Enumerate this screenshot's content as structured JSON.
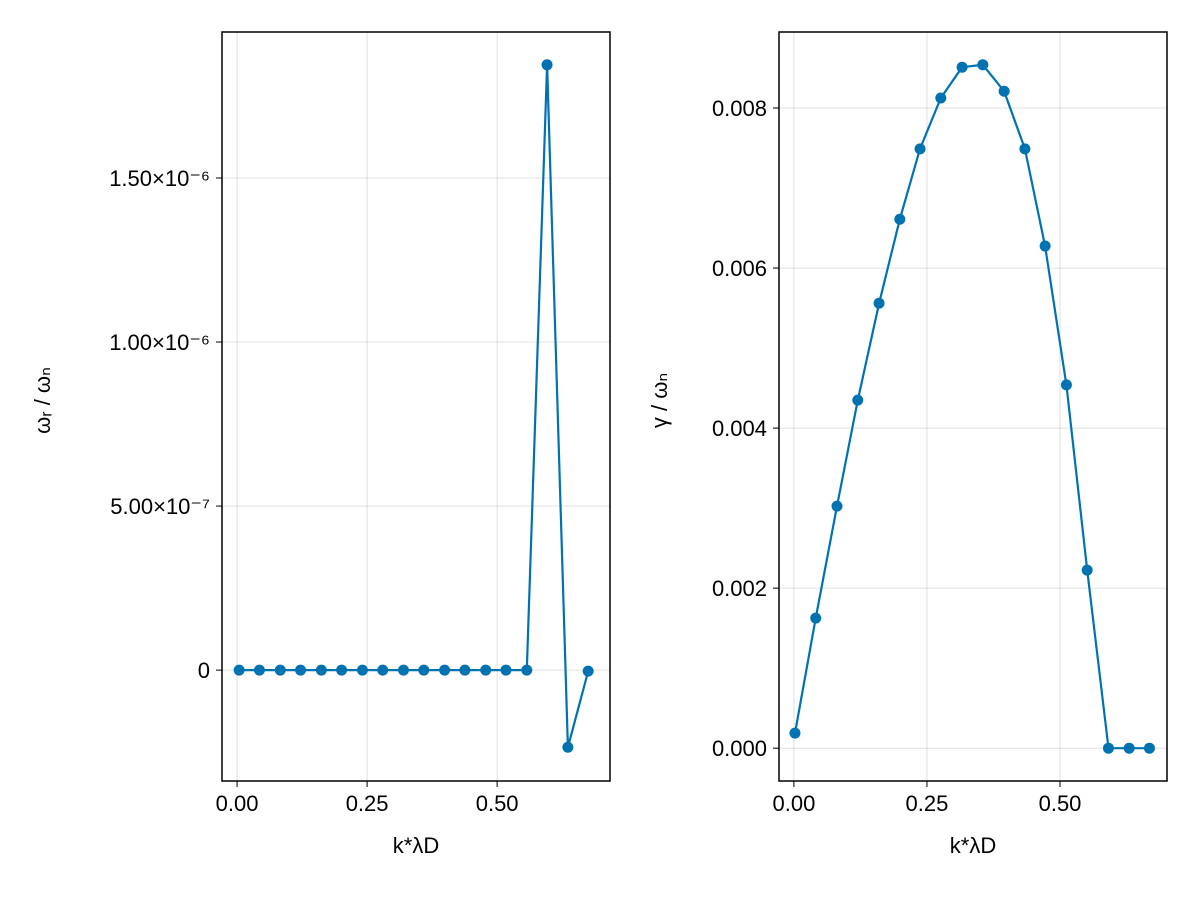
{
  "chart_data": [
    {
      "type": "line",
      "markers": true,
      "xlabel": "k*λD",
      "ylabel": "ωᵣ / ωₙ",
      "xlim": [
        -0.029,
        0.717
      ],
      "ylim": [
        -3.38e-07,
        1.945e-06
      ],
      "grid": true,
      "color": "#0072b2",
      "xticks": [
        0.0,
        0.25,
        0.5
      ],
      "xtick_labels": [
        "0.00",
        "0.25",
        "0.50"
      ],
      "yticks": [
        0,
        5e-07,
        1e-06,
        1.5e-06
      ],
      "ytick_labels": [
        "0",
        "5.00×10⁻⁷",
        "1.00×10⁻⁶",
        "1.50×10⁻⁶"
      ],
      "x": [
        0.004,
        0.043,
        0.083,
        0.122,
        0.162,
        0.201,
        0.241,
        0.28,
        0.32,
        0.359,
        0.399,
        0.438,
        0.478,
        0.517,
        0.557,
        0.596,
        0.636,
        0.675
      ],
      "y": [
        0,
        0,
        0,
        0,
        0,
        0,
        0,
        0,
        0,
        0,
        0,
        0,
        0,
        0,
        0,
        1.845e-06,
        -2.35e-07,
        -3e-09
      ]
    },
    {
      "type": "line",
      "markers": true,
      "xlabel": "k*λD",
      "ylabel": "γ / ωₙ",
      "xlim": [
        -0.028,
        0.701
      ],
      "ylim": [
        -0.00041,
        0.00895
      ],
      "grid": true,
      "color": "#0072b2",
      "xticks": [
        0.0,
        0.25,
        0.5
      ],
      "xtick_labels": [
        "0.00",
        "0.25",
        "0.50"
      ],
      "yticks": [
        0,
        0.002,
        0.004,
        0.006,
        0.008
      ],
      "ytick_labels": [
        "0.000",
        "0.002",
        "0.004",
        "0.006",
        "0.008"
      ],
      "x": [
        0.002,
        0.041,
        0.081,
        0.12,
        0.16,
        0.199,
        0.237,
        0.276,
        0.316,
        0.355,
        0.395,
        0.434,
        0.472,
        0.512,
        0.551,
        0.591,
        0.63,
        0.668
      ],
      "y": [
        0.000188,
        0.001625,
        0.003025,
        0.00435,
        0.00556,
        0.00661,
        0.00749,
        0.008125,
        0.00851,
        0.00854,
        0.00821,
        0.00749,
        0.006275,
        0.00454,
        0.002225,
        0.0,
        0.0,
        0.0
      ]
    }
  ]
}
